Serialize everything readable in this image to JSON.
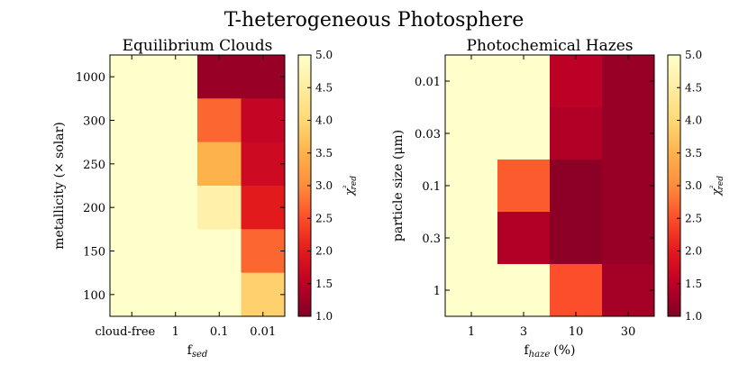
{
  "figure": {
    "suptitle": "T-heterogeneous Photosphere"
  },
  "colormap": {
    "name": "YlOrRd_r",
    "stops": [
      "#800026",
      "#bd0026",
      "#e31a1c",
      "#fc4e2a",
      "#fd8d3c",
      "#feb24c",
      "#fed976",
      "#ffeda0",
      "#ffffcc"
    ],
    "vmin": 1.0,
    "vmax": 5.0
  },
  "chart_data": [
    {
      "type": "heatmap",
      "title": "Equilibrium Clouds",
      "xlabel_main": "f",
      "xlabel_sub": "sed",
      "ylabel": "metallicity (× solar)",
      "x_categories": [
        "cloud-free",
        "1",
        "0.1",
        "0.01"
      ],
      "y_categories": [
        "1000",
        "300",
        "250",
        "200",
        "150",
        "100"
      ],
      "values": [
        [
          5.0,
          5.0,
          1.2,
          1.2
        ],
        [
          5.0,
          5.0,
          2.7,
          1.6
        ],
        [
          5.0,
          5.0,
          3.5,
          1.7
        ],
        [
          5.0,
          5.0,
          4.6,
          2.0
        ],
        [
          5.0,
          5.0,
          5.0,
          2.7
        ],
        [
          5.0,
          5.0,
          5.0,
          3.9
        ]
      ],
      "colorbar_label": "χ²red",
      "colorbar_ticks": [
        "1.0",
        "1.5",
        "2.0",
        "2.5",
        "3.0",
        "3.5",
        "4.0",
        "4.5",
        "5.0"
      ]
    },
    {
      "type": "heatmap",
      "title": "Photochemical Hazes",
      "xlabel_main": "f",
      "xlabel_sub": "haze",
      "xlabel_suffix": "(%)",
      "ylabel": "particle size (μm)",
      "x_categories": [
        "1",
        "3",
        "10",
        "30"
      ],
      "y_categories": [
        "0.01",
        "0.03",
        "0.1",
        "0.3",
        "1"
      ],
      "values": [
        [
          5.0,
          5.0,
          1.5,
          1.2
        ],
        [
          5.0,
          5.0,
          1.4,
          1.2
        ],
        [
          5.0,
          2.6,
          1.1,
          1.2
        ],
        [
          5.0,
          1.4,
          1.1,
          1.2
        ],
        [
          5.0,
          5.0,
          2.5,
          1.3
        ]
      ],
      "colorbar_label": "χ²red",
      "colorbar_ticks": [
        "1.0",
        "1.5",
        "2.0",
        "2.5",
        "3.0",
        "3.5",
        "4.0",
        "4.5",
        "5.0"
      ]
    }
  ]
}
